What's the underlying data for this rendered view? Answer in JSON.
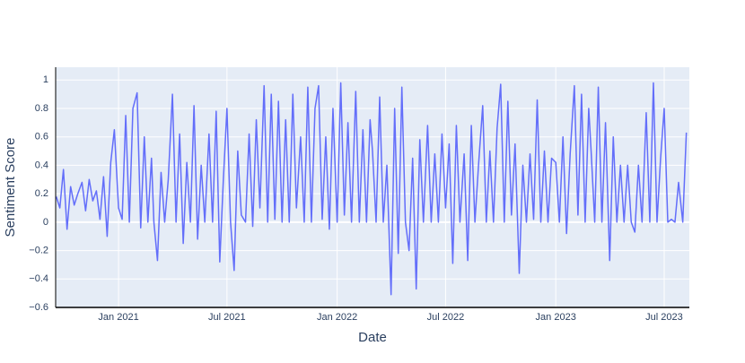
{
  "chart_data": {
    "type": "line",
    "x_label": "Date",
    "y_label": "Sentiment Score",
    "xlim": [
      "2020-09-18",
      "2023-08-12"
    ],
    "xticks": [
      {
        "value": "2021-01-01",
        "label": "Jan 2021"
      },
      {
        "value": "2021-07-01",
        "label": "Jul 2021"
      },
      {
        "value": "2022-01-01",
        "label": "Jan 2022"
      },
      {
        "value": "2022-07-01",
        "label": "Jul 2022"
      },
      {
        "value": "2023-01-01",
        "label": "Jan 2023"
      },
      {
        "value": "2023-07-01",
        "label": "Jul 2023"
      }
    ],
    "ylim": [
      -0.6,
      1.09
    ],
    "yticks": [
      {
        "value": -0.6,
        "label": "−0.6"
      },
      {
        "value": -0.4,
        "label": "−0.4"
      },
      {
        "value": -0.2,
        "label": "−0.2"
      },
      0,
      0.2,
      0.4,
      0.6,
      0.8,
      1
    ],
    "grid": true,
    "color": "#636efa",
    "background": "#e5ecf6",
    "x": [
      "2020-09-19",
      "2020-09-25",
      "2020-10-01",
      "2020-10-07",
      "2020-10-13",
      "2020-10-19",
      "2020-10-25",
      "2020-11-01",
      "2020-11-07",
      "2020-11-13",
      "2020-11-19",
      "2020-11-25",
      "2020-12-01",
      "2020-12-07",
      "2020-12-13",
      "2020-12-19",
      "2020-12-25",
      "2021-01-01",
      "2021-01-07",
      "2021-01-13",
      "2021-01-19",
      "2021-01-25",
      "2021-02-01",
      "2021-02-07",
      "2021-02-13",
      "2021-02-19",
      "2021-02-25",
      "2021-03-01",
      "2021-03-07",
      "2021-03-13",
      "2021-03-19",
      "2021-03-25",
      "2021-04-01",
      "2021-04-07",
      "2021-04-13",
      "2021-04-19",
      "2021-04-25",
      "2021-05-01",
      "2021-05-07",
      "2021-05-13",
      "2021-05-19",
      "2021-05-25",
      "2021-06-01",
      "2021-06-07",
      "2021-06-13",
      "2021-06-19",
      "2021-06-25",
      "2021-07-01",
      "2021-07-07",
      "2021-07-13",
      "2021-07-19",
      "2021-07-25",
      "2021-08-01",
      "2021-08-07",
      "2021-08-13",
      "2021-08-19",
      "2021-08-25",
      "2021-09-01",
      "2021-09-07",
      "2021-09-13",
      "2021-09-19",
      "2021-09-25",
      "2021-10-01",
      "2021-10-07",
      "2021-10-13",
      "2021-10-19",
      "2021-10-25",
      "2021-11-01",
      "2021-11-07",
      "2021-11-13",
      "2021-11-19",
      "2021-11-25",
      "2021-12-01",
      "2021-12-07",
      "2021-12-13",
      "2021-12-19",
      "2021-12-25",
      "2022-01-01",
      "2022-01-07",
      "2022-01-13",
      "2022-01-19",
      "2022-01-25",
      "2022-02-01",
      "2022-02-07",
      "2022-02-13",
      "2022-02-19",
      "2022-02-25",
      "2022-03-01",
      "2022-03-07",
      "2022-03-13",
      "2022-03-19",
      "2022-03-25",
      "2022-04-01",
      "2022-04-07",
      "2022-04-13",
      "2022-04-19",
      "2022-04-25",
      "2022-05-01",
      "2022-05-07",
      "2022-05-13",
      "2022-05-19",
      "2022-05-25",
      "2022-06-01",
      "2022-06-07",
      "2022-06-13",
      "2022-06-19",
      "2022-06-25",
      "2022-07-01",
      "2022-07-07",
      "2022-07-13",
      "2022-07-19",
      "2022-07-25",
      "2022-08-01",
      "2022-08-07",
      "2022-08-13",
      "2022-08-19",
      "2022-08-25",
      "2022-09-01",
      "2022-09-07",
      "2022-09-13",
      "2022-09-19",
      "2022-09-25",
      "2022-10-01",
      "2022-10-07",
      "2022-10-13",
      "2022-10-19",
      "2022-10-25",
      "2022-11-01",
      "2022-11-07",
      "2022-11-13",
      "2022-11-19",
      "2022-11-25",
      "2022-12-01",
      "2022-12-07",
      "2022-12-13",
      "2022-12-19",
      "2022-12-25",
      "2023-01-01",
      "2023-01-07",
      "2023-01-13",
      "2023-01-19",
      "2023-01-25",
      "2023-02-01",
      "2023-02-07",
      "2023-02-13",
      "2023-02-19",
      "2023-02-25",
      "2023-03-01",
      "2023-03-07",
      "2023-03-13",
      "2023-03-19",
      "2023-03-25",
      "2023-04-01",
      "2023-04-07",
      "2023-04-13",
      "2023-04-19",
      "2023-04-25",
      "2023-05-01",
      "2023-05-07",
      "2023-05-13",
      "2023-05-19",
      "2023-05-25",
      "2023-06-01",
      "2023-06-07",
      "2023-06-13",
      "2023-06-19",
      "2023-06-25",
      "2023-07-01",
      "2023-07-07",
      "2023-07-13",
      "2023-07-19",
      "2023-07-25",
      "2023-08-01",
      "2023-08-07"
    ],
    "values": [
      0.18,
      0.1,
      0.37,
      -0.05,
      0.25,
      0.12,
      0.2,
      0.28,
      0.08,
      0.3,
      0.15,
      0.22,
      0.02,
      0.32,
      -0.1,
      0.42,
      0.65,
      0.1,
      0.02,
      0.75,
      0,
      0.8,
      0.91,
      -0.04,
      0.6,
      0,
      0.45,
      0,
      -0.27,
      0.35,
      0,
      0.3,
      0.9,
      0,
      0.62,
      -0.15,
      0.42,
      0,
      0.82,
      -0.12,
      0.4,
      0,
      0.62,
      0,
      0.78,
      -0.28,
      0.3,
      0.8,
      0,
      -0.34,
      0.5,
      0.05,
      0,
      0.62,
      -0.03,
      0.72,
      0.1,
      0.96,
      0,
      0.9,
      0.02,
      0.85,
      0,
      0.72,
      0,
      0.9,
      0.1,
      0.6,
      0,
      0.95,
      0,
      0.8,
      0.96,
      0.02,
      0.6,
      -0.05,
      0.8,
      0,
      0.98,
      0.05,
      0.7,
      0,
      0.92,
      0,
      0.65,
      0,
      0.72,
      0.5,
      0,
      0.88,
      0,
      0.4,
      -0.51,
      0.8,
      -0.22,
      0.95,
      0,
      -0.2,
      0.45,
      -0.47,
      0.58,
      0,
      0.68,
      0,
      0.48,
      0,
      0.62,
      0.1,
      0.55,
      -0.29,
      0.68,
      0,
      0.48,
      -0.27,
      0.68,
      0,
      0.4,
      0.82,
      0,
      0.5,
      0,
      0.66,
      0.97,
      0,
      0.85,
      0.05,
      0.55,
      -0.36,
      0.4,
      0,
      0.48,
      0.02,
      0.86,
      0,
      0.5,
      0,
      0.45,
      0.42,
      0,
      0.6,
      -0.08,
      0.48,
      0.96,
      0.05,
      0.9,
      0,
      0.8,
      0.5,
      0,
      0.95,
      0,
      0.7,
      -0.27,
      0.6,
      0,
      0.4,
      0,
      0.4,
      0,
      -0.07,
      0.4,
      0,
      0.77,
      0,
      0.98,
      0,
      0.45,
      0.8,
      0,
      0.02,
      0,
      0.28,
      0,
      0.63
    ]
  }
}
